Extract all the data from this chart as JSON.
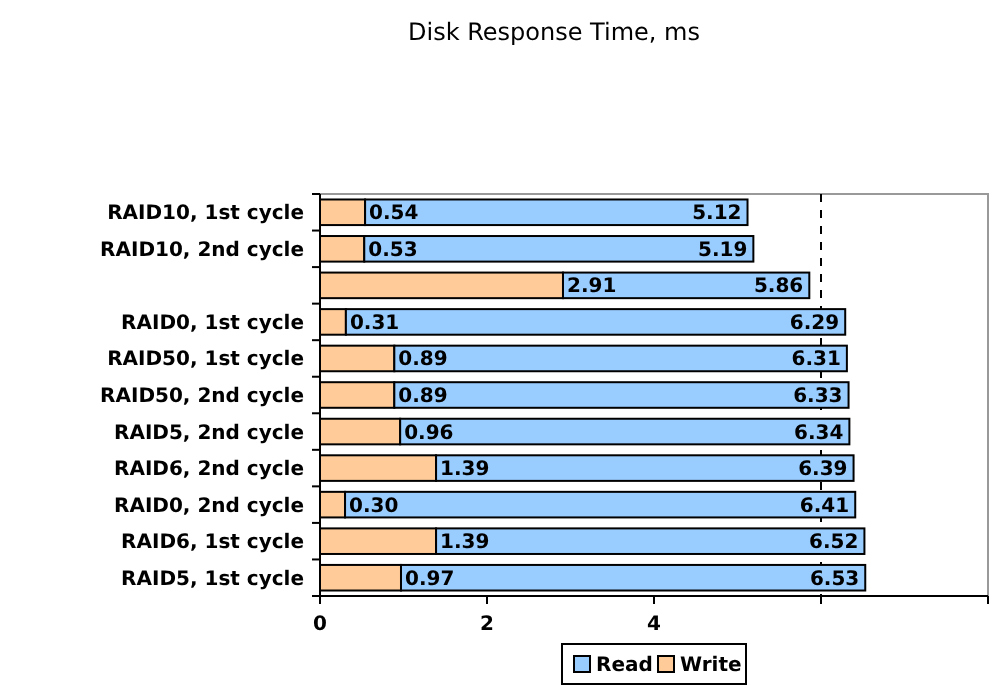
{
  "chart_data": {
    "type": "bar",
    "title": "Disk Response Time, ms",
    "orientation": "horizontal",
    "stacked": true,
    "categories": [
      "RAID10, 1st cycle",
      "RAID10, 2nd cycle",
      null,
      "RAID0, 1st cycle",
      "RAID50, 1st cycle",
      "RAID50, 2nd cycle",
      "RAID5, 2nd cycle",
      "RAID6, 2nd cycle",
      "RAID0, 2nd cycle",
      "RAID6, 1st cycle",
      "RAID5, 1st cycle"
    ],
    "series": [
      {
        "name": "Write",
        "color": "#ffcc99",
        "values": [
          0.54,
          0.53,
          2.91,
          0.31,
          0.89,
          0.89,
          0.96,
          1.39,
          0.3,
          1.39,
          0.97
        ],
        "value_labels": [
          "0.54",
          "0.53",
          "2.91",
          "0.31",
          "0.89",
          "0.89",
          "0.96",
          "1.39",
          "0.30",
          "1.39",
          "0.97"
        ]
      },
      {
        "name": "Read",
        "color": "#99ccff",
        "values": [
          4.58,
          4.66,
          2.95,
          5.98,
          5.42,
          5.44,
          5.38,
          5.0,
          6.11,
          5.13,
          5.56
        ]
      }
    ],
    "totals": [
      "5.12",
      "5.19",
      "5.86",
      "6.29",
      "6.31",
      "6.33",
      "6.34",
      "6.39",
      "6.41",
      "6.52",
      "6.53"
    ],
    "xlim": [
      0,
      8
    ],
    "xticks": [
      0,
      2,
      4,
      {
        "value": 6,
        "label": null
      },
      {
        "value": 8,
        "label": null
      }
    ],
    "ref_lines": [
      {
        "axis": "x",
        "value": 6,
        "line_style": "dashed",
        "color": "#000000"
      }
    ],
    "legend": "bottom"
  }
}
